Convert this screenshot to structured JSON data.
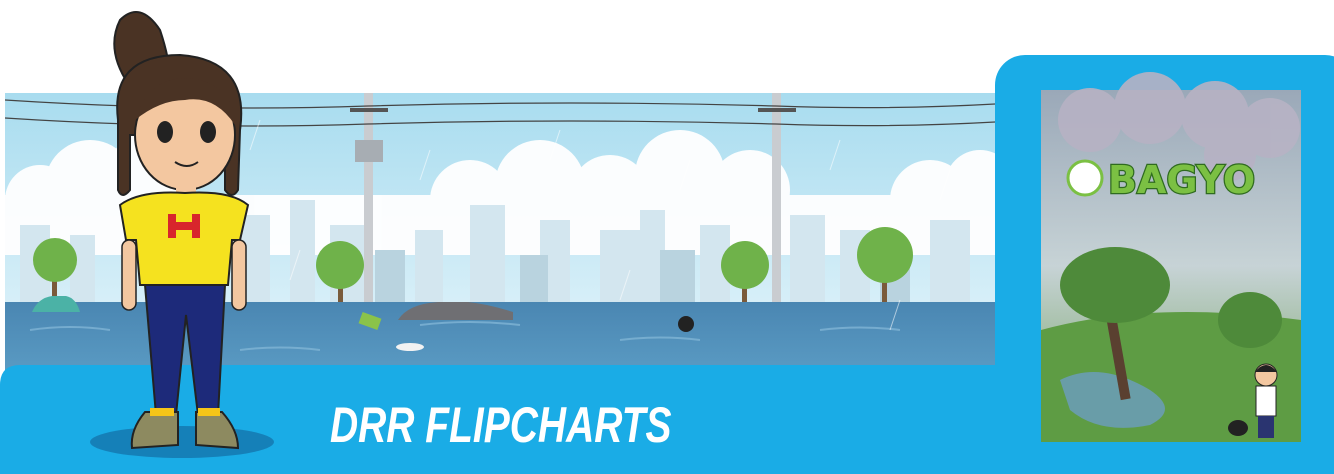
{
  "banner": {
    "title": "DRR FLIPCHARTS"
  },
  "flipchart": {
    "title": "BAGYO"
  }
}
